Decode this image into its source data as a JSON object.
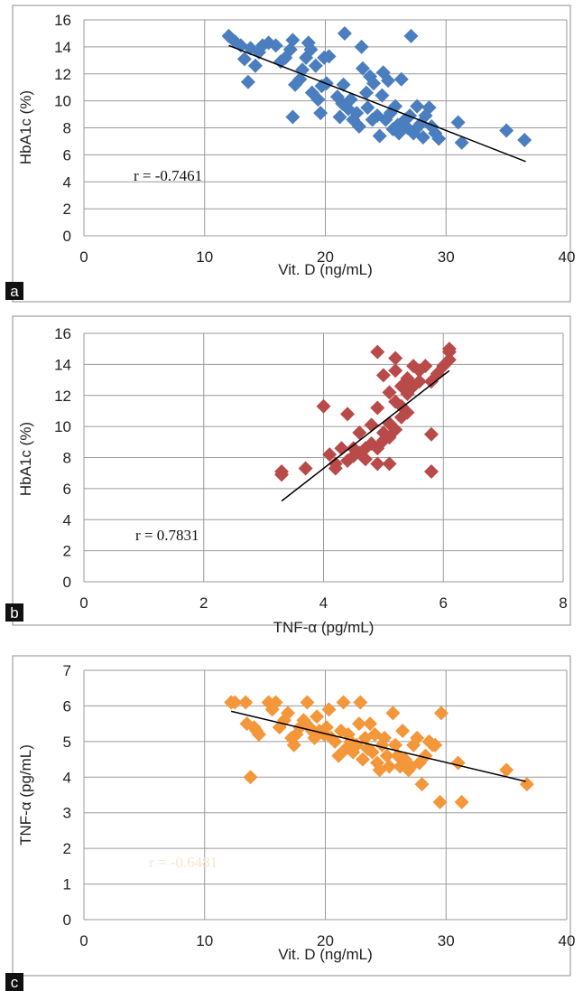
{
  "chart_data": [
    {
      "panel": "a",
      "type": "scatter",
      "xlabel": "Vit. D (ng/mL)",
      "ylabel": "HbA1c (%)",
      "xlim": [
        0,
        40
      ],
      "ylim": [
        0,
        16
      ],
      "xticks": [
        0,
        10,
        20,
        30,
        40
      ],
      "yticks": [
        0,
        2,
        4,
        6,
        8,
        10,
        12,
        14,
        16
      ],
      "grid": true,
      "color": "#4a7ebf",
      "annotation": "r = -0.7461",
      "annotation_color": "#111111",
      "trendline": [
        [
          12.0,
          14.1
        ],
        [
          36.6,
          5.5
        ]
      ],
      "points": [
        [
          12.0,
          14.8
        ],
        [
          12.5,
          14.4
        ],
        [
          13.0,
          14.1
        ],
        [
          13.3,
          13.1
        ],
        [
          13.6,
          11.4
        ],
        [
          13.8,
          13.9
        ],
        [
          14.2,
          12.6
        ],
        [
          14.5,
          13.6
        ],
        [
          14.8,
          14.1
        ],
        [
          15.3,
          14.3
        ],
        [
          15.9,
          14.1
        ],
        [
          16.3,
          12.9
        ],
        [
          16.7,
          13.2
        ],
        [
          17.1,
          13.8
        ],
        [
          17.3,
          14.5
        ],
        [
          17.5,
          11.2
        ],
        [
          17.3,
          8.8
        ],
        [
          17.9,
          11.6
        ],
        [
          18.1,
          12.3
        ],
        [
          18.4,
          13.2
        ],
        [
          18.6,
          14.3
        ],
        [
          18.8,
          13.8
        ],
        [
          18.9,
          10.6
        ],
        [
          19.2,
          12.6
        ],
        [
          19.4,
          10.1
        ],
        [
          19.7,
          11.1
        ],
        [
          19.6,
          9.1
        ],
        [
          19.9,
          13.2
        ],
        [
          20.3,
          13.3
        ],
        [
          20.1,
          11.3
        ],
        [
          21.0,
          10.3
        ],
        [
          21.4,
          9.8
        ],
        [
          21.2,
          8.8
        ],
        [
          21.5,
          11.2
        ],
        [
          21.6,
          15.0
        ],
        [
          21.9,
          9.4
        ],
        [
          22.1,
          10.1
        ],
        [
          22.3,
          8.6
        ],
        [
          22.6,
          9.1
        ],
        [
          22.8,
          8.1
        ],
        [
          23.0,
          14.0
        ],
        [
          23.1,
          12.4
        ],
        [
          23.4,
          10.6
        ],
        [
          23.5,
          9.5
        ],
        [
          23.7,
          11.8
        ],
        [
          23.9,
          8.6
        ],
        [
          24.0,
          11.3
        ],
        [
          24.3,
          8.9
        ],
        [
          24.5,
          7.4
        ],
        [
          24.7,
          10.4
        ],
        [
          24.8,
          12.1
        ],
        [
          25.0,
          8.6
        ],
        [
          25.2,
          11.5
        ],
        [
          25.4,
          9.1
        ],
        [
          25.6,
          7.9
        ],
        [
          25.8,
          9.6
        ],
        [
          26.0,
          8.2
        ],
        [
          26.1,
          7.6
        ],
        [
          26.3,
          11.6
        ],
        [
          26.6,
          8.6
        ],
        [
          26.8,
          8.0
        ],
        [
          27.0,
          8.9
        ],
        [
          27.1,
          14.8
        ],
        [
          27.3,
          7.6
        ],
        [
          27.5,
          7.9
        ],
        [
          27.6,
          9.6
        ],
        [
          27.9,
          8.3
        ],
        [
          28.1,
          7.3
        ],
        [
          28.3,
          8.9
        ],
        [
          28.6,
          9.5
        ],
        [
          28.8,
          8.1
        ],
        [
          29.1,
          7.6
        ],
        [
          29.4,
          7.2
        ],
        [
          31.0,
          8.4
        ],
        [
          31.3,
          6.9
        ],
        [
          35.0,
          7.8
        ],
        [
          36.5,
          7.1
        ]
      ]
    },
    {
      "panel": "b",
      "type": "scatter",
      "xlabel": "TNF-α (pg/mL)",
      "ylabel": "HbA1c (%)",
      "xlim": [
        0,
        8
      ],
      "ylim": [
        0,
        16
      ],
      "xticks": [
        0,
        2,
        4,
        6,
        8
      ],
      "yticks": [
        0,
        2,
        4,
        6,
        8,
        10,
        12,
        14,
        16
      ],
      "grid": true,
      "color": "#b94a4a",
      "annotation": "r = 0.7831",
      "annotation_color": "#111111",
      "trendline": [
        [
          3.3,
          5.2
        ],
        [
          6.1,
          13.6
        ]
      ],
      "points": [
        [
          3.3,
          7.1
        ],
        [
          3.3,
          6.9
        ],
        [
          3.7,
          7.3
        ],
        [
          4.0,
          11.3
        ],
        [
          4.1,
          8.2
        ],
        [
          4.2,
          7.6
        ],
        [
          4.2,
          7.3
        ],
        [
          4.3,
          8.6
        ],
        [
          4.4,
          7.8
        ],
        [
          4.4,
          10.8
        ],
        [
          4.5,
          8.1
        ],
        [
          4.5,
          8.6
        ],
        [
          4.6,
          8.3
        ],
        [
          4.6,
          9.6
        ],
        [
          4.7,
          8.6
        ],
        [
          4.7,
          7.9
        ],
        [
          4.8,
          8.9
        ],
        [
          4.8,
          10.1
        ],
        [
          4.9,
          7.6
        ],
        [
          4.9,
          8.6
        ],
        [
          4.9,
          11.2
        ],
        [
          4.9,
          14.8
        ],
        [
          5.0,
          9.1
        ],
        [
          5.0,
          9.6
        ],
        [
          5.0,
          13.3
        ],
        [
          5.1,
          12.2
        ],
        [
          5.1,
          10.2
        ],
        [
          5.1,
          9.3
        ],
        [
          5.1,
          7.6
        ],
        [
          5.2,
          11.6
        ],
        [
          5.2,
          9.8
        ],
        [
          5.2,
          13.6
        ],
        [
          5.2,
          14.4
        ],
        [
          5.3,
          10.6
        ],
        [
          5.3,
          11.3
        ],
        [
          5.3,
          12.6
        ],
        [
          5.4,
          12.1
        ],
        [
          5.4,
          13.1
        ],
        [
          5.4,
          10.9
        ],
        [
          5.5,
          12.6
        ],
        [
          5.5,
          13.9
        ],
        [
          5.6,
          12.9
        ],
        [
          5.6,
          13.6
        ],
        [
          5.7,
          13.9
        ],
        [
          5.8,
          12.9
        ],
        [
          5.8,
          9.5
        ],
        [
          5.8,
          7.1
        ],
        [
          5.9,
          13.4
        ],
        [
          6.0,
          13.9
        ],
        [
          6.1,
          14.3
        ],
        [
          6.1,
          14.8
        ],
        [
          6.1,
          15.0
        ]
      ]
    },
    {
      "panel": "c",
      "type": "scatter",
      "xlabel": "Vit. D (ng/mL)",
      "ylabel": "TNF-α (pg/mL)",
      "xlim": [
        0,
        40
      ],
      "ylim": [
        0,
        7
      ],
      "xticks": [
        0,
        10,
        20,
        30,
        40
      ],
      "yticks": [
        0,
        1,
        2,
        3,
        4,
        5,
        6,
        7
      ],
      "grid": true,
      "color": "#f4963a",
      "annotation": "r = -0.6481",
      "annotation_color": "#fbe3cd",
      "trendline": [
        [
          12.2,
          5.85
        ],
        [
          36.6,
          3.88
        ]
      ],
      "points": [
        [
          12.2,
          6.1
        ],
        [
          12.5,
          6.1
        ],
        [
          13.4,
          6.1
        ],
        [
          13.5,
          5.5
        ],
        [
          13.8,
          4.0
        ],
        [
          14.1,
          5.4
        ],
        [
          14.3,
          5.3
        ],
        [
          14.5,
          5.2
        ],
        [
          15.3,
          6.1
        ],
        [
          15.6,
          5.9
        ],
        [
          15.9,
          6.1
        ],
        [
          16.2,
          5.4
        ],
        [
          16.6,
          5.6
        ],
        [
          16.9,
          5.8
        ],
        [
          17.2,
          5.1
        ],
        [
          17.4,
          4.9
        ],
        [
          17.6,
          5.2
        ],
        [
          17.9,
          5.4
        ],
        [
          18.2,
          5.6
        ],
        [
          18.5,
          6.1
        ],
        [
          18.7,
          5.4
        ],
        [
          18.9,
          5.3
        ],
        [
          19.1,
          5.1
        ],
        [
          19.3,
          5.7
        ],
        [
          19.5,
          5.3
        ],
        [
          19.9,
          5.2
        ],
        [
          20.1,
          5.4
        ],
        [
          20.3,
          5.9
        ],
        [
          20.5,
          5.1
        ],
        [
          20.8,
          5.0
        ],
        [
          21.1,
          4.6
        ],
        [
          21.3,
          5.3
        ],
        [
          21.5,
          6.1
        ],
        [
          21.7,
          4.8
        ],
        [
          21.9,
          5.2
        ],
        [
          22.1,
          5.0
        ],
        [
          22.3,
          4.7
        ],
        [
          22.6,
          4.9
        ],
        [
          22.8,
          5.5
        ],
        [
          22.9,
          6.1
        ],
        [
          23.1,
          4.5
        ],
        [
          23.3,
          5.1
        ],
        [
          23.5,
          4.8
        ],
        [
          23.7,
          5.5
        ],
        [
          23.9,
          4.7
        ],
        [
          24.1,
          5.2
        ],
        [
          24.3,
          4.4
        ],
        [
          24.5,
          4.2
        ],
        [
          24.7,
          4.9
        ],
        [
          24.9,
          5.1
        ],
        [
          25.1,
          4.6
        ],
        [
          25.3,
          4.3
        ],
        [
          25.6,
          5.8
        ],
        [
          25.8,
          4.9
        ],
        [
          26.0,
          4.6
        ],
        [
          26.2,
          4.3
        ],
        [
          26.4,
          5.3
        ],
        [
          26.6,
          4.5
        ],
        [
          26.9,
          4.2
        ],
        [
          27.1,
          4.3
        ],
        [
          27.3,
          4.9
        ],
        [
          27.6,
          5.1
        ],
        [
          27.8,
          4.4
        ],
        [
          28.0,
          3.8
        ],
        [
          28.3,
          4.6
        ],
        [
          28.6,
          5.0
        ],
        [
          28.9,
          4.9
        ],
        [
          29.1,
          4.9
        ],
        [
          29.5,
          3.3
        ],
        [
          29.6,
          5.8
        ],
        [
          31.0,
          4.4
        ],
        [
          31.3,
          3.3
        ],
        [
          35.0,
          4.2
        ],
        [
          36.7,
          3.8
        ]
      ]
    }
  ]
}
